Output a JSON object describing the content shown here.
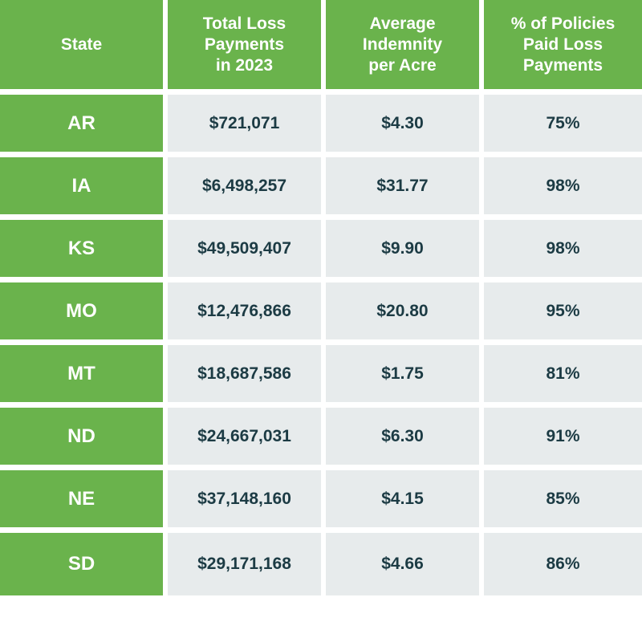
{
  "chart_data": {
    "type": "table",
    "columns": [
      "State",
      "Total Loss\nPayments\nin 2023",
      "Average\nIndemnity\nper Acre",
      "% of Policies\nPaid Loss\nPayments"
    ],
    "rows": [
      [
        "AR",
        "$721,071",
        "$4.30",
        "75%"
      ],
      [
        "IA",
        "$6,498,257",
        "$31.77",
        "98%"
      ],
      [
        "KS",
        "$49,509,407",
        "$9.90",
        "98%"
      ],
      [
        "MO",
        "$12,476,866",
        "$20.80",
        "95%"
      ],
      [
        "MT",
        "$18,687,586",
        "$1.75",
        "81%"
      ],
      [
        "ND",
        "$24,667,031",
        "$6.30",
        "91%"
      ],
      [
        "NE",
        "$37,148,160",
        "$4.15",
        "85%"
      ],
      [
        "SD",
        "$29,171,168",
        "$4.66",
        "86%"
      ]
    ]
  },
  "colors": {
    "header_green": "#6ab34c",
    "data_bg": "#e7ebec",
    "data_text": "#1c3b44"
  }
}
